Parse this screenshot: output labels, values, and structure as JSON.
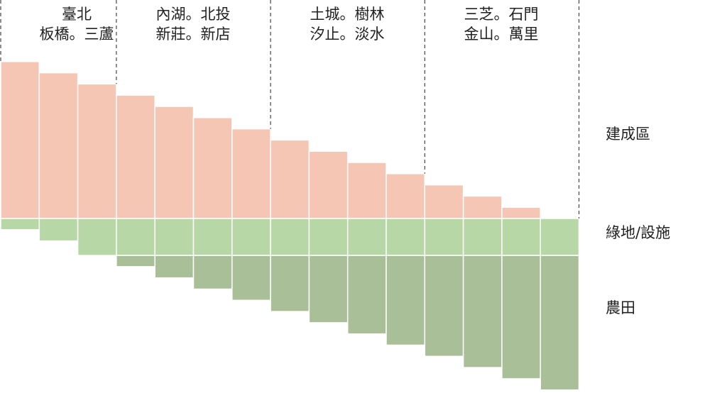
{
  "groups": [
    {
      "line1": "臺北",
      "line2": "板橋。三蘆"
    },
    {
      "line1": "內湖。北投",
      "line2": "新莊。新店"
    },
    {
      "line1": "土城。樹林",
      "line2": "汐止。淡水"
    },
    {
      "line1": "三芝。石門",
      "line2": "金山。萬里"
    }
  ],
  "bands": {
    "built": "建成區",
    "green": "綠地/設施",
    "farm": "農田"
  },
  "colors": {
    "built": "#f5c6b3",
    "green": "#b8d7a6",
    "farm": "#a8bf98",
    "divider": "#444444"
  },
  "columns": [
    {
      "built": 14,
      "green": 1,
      "farm": 0
    },
    {
      "built": 13,
      "green": 2,
      "farm": 0
    },
    {
      "built": 12,
      "green": 3.3,
      "farm": 0
    },
    {
      "built": 11,
      "green": 3.3,
      "farm": 1
    },
    {
      "built": 10,
      "green": 3.3,
      "farm": 2
    },
    {
      "built": 9,
      "green": 3.3,
      "farm": 3
    },
    {
      "built": 8,
      "green": 3.3,
      "farm": 4
    },
    {
      "built": 7,
      "green": 3.3,
      "farm": 5
    },
    {
      "built": 6,
      "green": 3.3,
      "farm": 6
    },
    {
      "built": 5,
      "green": 3.3,
      "farm": 7
    },
    {
      "built": 4,
      "green": 3.3,
      "farm": 8
    },
    {
      "built": 3,
      "green": 3.3,
      "farm": 9
    },
    {
      "built": 2,
      "green": 3.3,
      "farm": 10
    },
    {
      "built": 1,
      "green": 3.3,
      "farm": 11
    },
    {
      "built": 0,
      "green": 3.3,
      "farm": 12
    }
  ]
}
